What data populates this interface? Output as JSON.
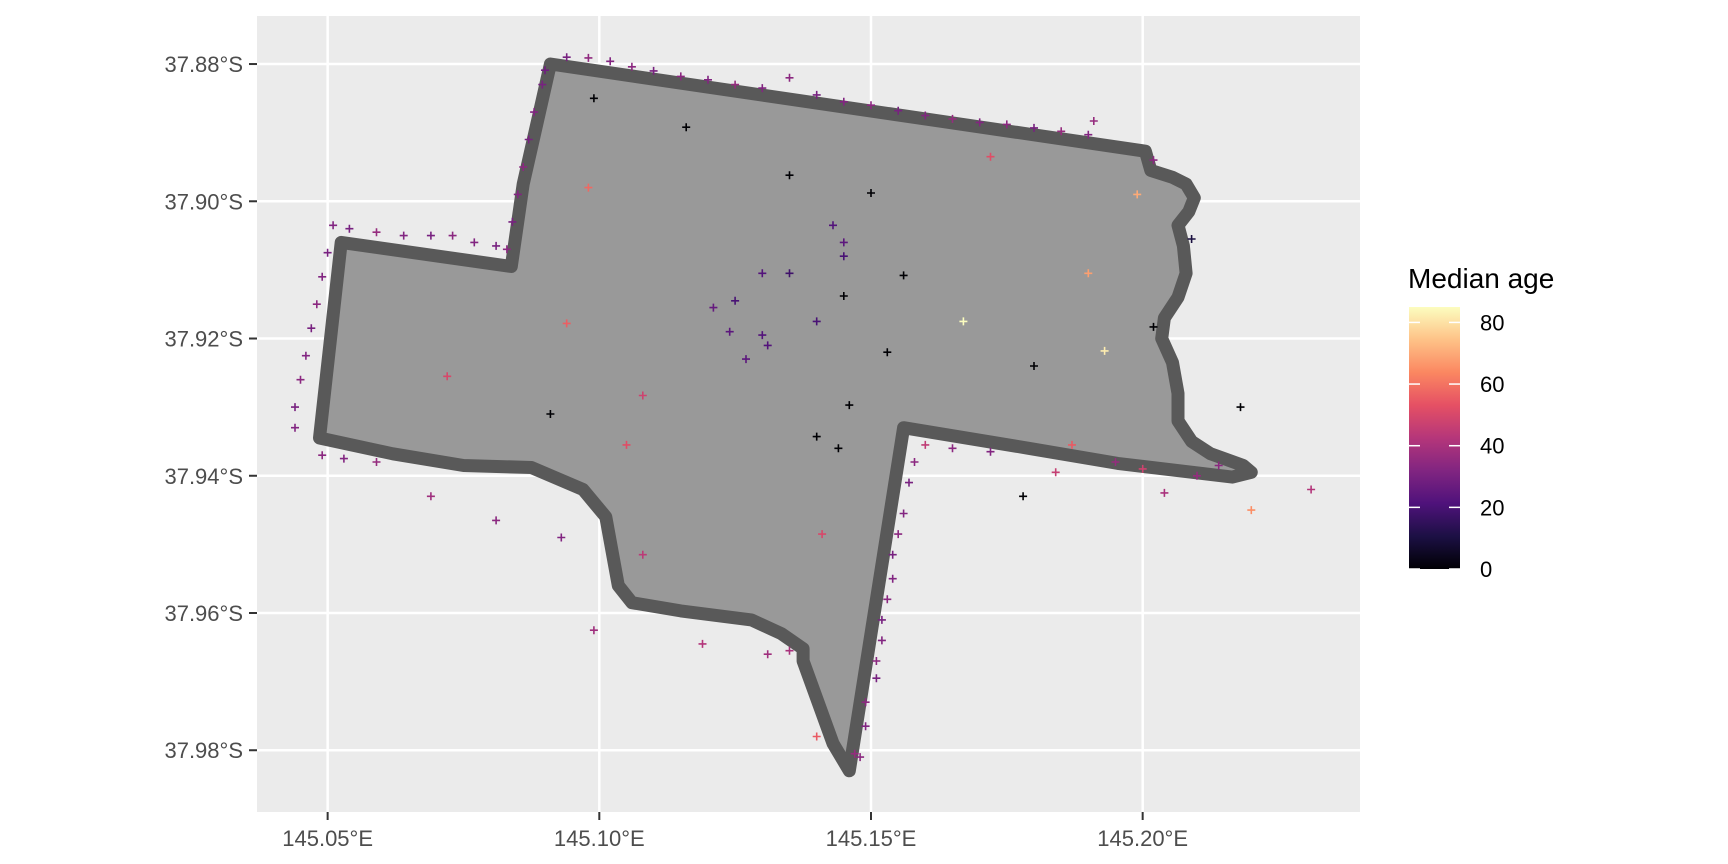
{
  "chart_data": {
    "type": "scatter",
    "xlim": [
      145.037,
      145.24
    ],
    "ylim": [
      -37.989,
      -37.873
    ],
    "x_ticks": [
      {
        "value": 145.05,
        "label": "145.05°E"
      },
      {
        "value": 145.1,
        "label": "145.10°E"
      },
      {
        "value": 145.15,
        "label": "145.15°E"
      },
      {
        "value": 145.2,
        "label": "145.20°E"
      }
    ],
    "y_ticks": [
      {
        "value": -37.88,
        "label": "37.88°S"
      },
      {
        "value": -37.9,
        "label": "37.90°S"
      },
      {
        "value": -37.92,
        "label": "37.92°S"
      },
      {
        "value": -37.94,
        "label": "37.94°S"
      },
      {
        "value": -37.96,
        "label": "37.96°S"
      },
      {
        "value": -37.98,
        "label": "37.98°S"
      }
    ],
    "grid": true,
    "legend": {
      "title": "Median age",
      "placement": "right",
      "min": 0,
      "max": 85,
      "ticks": [
        0,
        20,
        40,
        60,
        80
      ],
      "colors": [
        "#000004",
        "#1c1044",
        "#4f127b",
        "#812581",
        "#b5367a",
        "#e55064",
        "#fb8761",
        "#fec287",
        "#fcfdbf"
      ]
    },
    "boundary": [
      [
        145.091,
        -37.88
      ],
      [
        145.2005,
        -37.8927
      ],
      [
        145.2015,
        -37.8955
      ],
      [
        145.2055,
        -37.8965
      ],
      [
        145.208,
        -37.8975
      ],
      [
        145.2095,
        -37.8995
      ],
      [
        145.2085,
        -37.9015
      ],
      [
        145.2065,
        -37.9035
      ],
      [
        145.2075,
        -37.9065
      ],
      [
        145.208,
        -37.9105
      ],
      [
        145.2065,
        -37.914
      ],
      [
        145.204,
        -37.917
      ],
      [
        145.2035,
        -37.92
      ],
      [
        145.2055,
        -37.9235
      ],
      [
        145.2065,
        -37.928
      ],
      [
        145.2065,
        -37.932
      ],
      [
        145.209,
        -37.935
      ],
      [
        145.2125,
        -37.9368
      ],
      [
        145.215,
        -37.9375
      ],
      [
        145.2185,
        -37.9385
      ],
      [
        145.22,
        -37.9395
      ],
      [
        145.2165,
        -37.9402
      ],
      [
        145.1954,
        -37.9382
      ],
      [
        145.179,
        -37.936
      ],
      [
        145.156,
        -37.933
      ],
      [
        145.146,
        -37.983
      ],
      [
        145.143,
        -37.979
      ],
      [
        145.1375,
        -37.967
      ],
      [
        145.1375,
        -37.9652
      ],
      [
        145.1335,
        -37.963
      ],
      [
        145.128,
        -37.961
      ],
      [
        145.115,
        -37.9597
      ],
      [
        145.106,
        -37.9585
      ],
      [
        145.1035,
        -37.956
      ],
      [
        145.1012,
        -37.946
      ],
      [
        145.097,
        -37.942
      ],
      [
        145.0875,
        -37.9388
      ],
      [
        145.075,
        -37.9385
      ],
      [
        145.062,
        -37.9368
      ],
      [
        145.0485,
        -37.9345
      ],
      [
        145.0525,
        -37.906
      ],
      [
        145.0838,
        -37.9095
      ],
      [
        145.086,
        -37.8975
      ]
    ],
    "series": [
      {
        "x": 145.09,
        "y": -37.8809,
        "v": 28
      },
      {
        "x": 145.094,
        "y": -37.879,
        "v": 30
      },
      {
        "x": 145.098,
        "y": -37.8791,
        "v": 35
      },
      {
        "x": 145.102,
        "y": -37.8796,
        "v": 32
      },
      {
        "x": 145.106,
        "y": -37.8804,
        "v": 34
      },
      {
        "x": 145.11,
        "y": -37.881,
        "v": 30
      },
      {
        "x": 145.115,
        "y": -37.8818,
        "v": 34
      },
      {
        "x": 145.12,
        "y": -37.8823,
        "v": 32
      },
      {
        "x": 145.125,
        "y": -37.883,
        "v": 36
      },
      {
        "x": 145.13,
        "y": -37.8835,
        "v": 32
      },
      {
        "x": 145.135,
        "y": -37.882,
        "v": 34
      },
      {
        "x": 145.14,
        "y": -37.8845,
        "v": 30
      },
      {
        "x": 145.145,
        "y": -37.8855,
        "v": 32
      },
      {
        "x": 145.15,
        "y": -37.886,
        "v": 34
      },
      {
        "x": 145.155,
        "y": -37.8868,
        "v": 30
      },
      {
        "x": 145.16,
        "y": -37.8875,
        "v": 32
      },
      {
        "x": 145.165,
        "y": -37.888,
        "v": 36
      },
      {
        "x": 145.17,
        "y": -37.8885,
        "v": 32
      },
      {
        "x": 145.175,
        "y": -37.8888,
        "v": 34
      },
      {
        "x": 145.18,
        "y": -37.8893,
        "v": 30
      },
      {
        "x": 145.185,
        "y": -37.8898,
        "v": 36
      },
      {
        "x": 145.19,
        "y": -37.8903,
        "v": 32
      },
      {
        "x": 145.0895,
        "y": -37.883,
        "v": 30
      },
      {
        "x": 145.088,
        "y": -37.887,
        "v": 32
      },
      {
        "x": 145.087,
        "y": -37.891,
        "v": 30
      },
      {
        "x": 145.086,
        "y": -37.895,
        "v": 34
      },
      {
        "x": 145.085,
        "y": -37.899,
        "v": 32
      },
      {
        "x": 145.084,
        "y": -37.903,
        "v": 30
      },
      {
        "x": 145.083,
        "y": -37.907,
        "v": 34
      },
      {
        "x": 145.051,
        "y": -37.9035,
        "v": 32
      },
      {
        "x": 145.054,
        "y": -37.904,
        "v": 30
      },
      {
        "x": 145.059,
        "y": -37.9045,
        "v": 36
      },
      {
        "x": 145.064,
        "y": -37.905,
        "v": 32
      },
      {
        "x": 145.069,
        "y": -37.905,
        "v": 30
      },
      {
        "x": 145.073,
        "y": -37.905,
        "v": 34
      },
      {
        "x": 145.077,
        "y": -37.906,
        "v": 32
      },
      {
        "x": 145.081,
        "y": -37.9065,
        "v": 30
      },
      {
        "x": 145.05,
        "y": -37.9075,
        "v": 30
      },
      {
        "x": 145.049,
        "y": -37.911,
        "v": 32
      },
      {
        "x": 145.048,
        "y": -37.915,
        "v": 34
      },
      {
        "x": 145.047,
        "y": -37.9185,
        "v": 30
      },
      {
        "x": 145.046,
        "y": -37.9225,
        "v": 32
      },
      {
        "x": 145.045,
        "y": -37.926,
        "v": 34
      },
      {
        "x": 145.044,
        "y": -37.93,
        "v": 30
      },
      {
        "x": 145.044,
        "y": -37.933,
        "v": 32
      },
      {
        "x": 145.049,
        "y": -37.937,
        "v": 34
      },
      {
        "x": 145.053,
        "y": -37.9375,
        "v": 32
      },
      {
        "x": 145.059,
        "y": -37.938,
        "v": 36
      },
      {
        "x": 145.069,
        "y": -37.943,
        "v": 38
      },
      {
        "x": 145.081,
        "y": -37.9465,
        "v": 34
      },
      {
        "x": 145.093,
        "y": -37.949,
        "v": 32
      },
      {
        "x": 145.099,
        "y": -37.9625,
        "v": 38
      },
      {
        "x": 145.119,
        "y": -37.9645,
        "v": 42
      },
      {
        "x": 145.131,
        "y": -37.966,
        "v": 38
      },
      {
        "x": 145.135,
        "y": -37.9655,
        "v": 40
      },
      {
        "x": 145.14,
        "y": -37.978,
        "v": 55
      },
      {
        "x": 145.147,
        "y": -37.9805,
        "v": 36
      },
      {
        "x": 145.148,
        "y": -37.981,
        "v": 34
      },
      {
        "x": 145.149,
        "y": -37.9765,
        "v": 32
      },
      {
        "x": 145.149,
        "y": -37.973,
        "v": 34
      },
      {
        "x": 145.151,
        "y": -37.9695,
        "v": 30
      },
      {
        "x": 145.151,
        "y": -37.967,
        "v": 34
      },
      {
        "x": 145.152,
        "y": -37.964,
        "v": 32
      },
      {
        "x": 145.152,
        "y": -37.961,
        "v": 30
      },
      {
        "x": 145.153,
        "y": -37.958,
        "v": 34
      },
      {
        "x": 145.154,
        "y": -37.955,
        "v": 32
      },
      {
        "x": 145.154,
        "y": -37.9515,
        "v": 30
      },
      {
        "x": 145.155,
        "y": -37.9485,
        "v": 34
      },
      {
        "x": 145.156,
        "y": -37.9455,
        "v": 32
      },
      {
        "x": 145.157,
        "y": -37.941,
        "v": 30
      },
      {
        "x": 145.158,
        "y": -37.938,
        "v": 34
      },
      {
        "x": 145.16,
        "y": -37.9355,
        "v": 45
      },
      {
        "x": 145.165,
        "y": -37.936,
        "v": 34
      },
      {
        "x": 145.172,
        "y": -37.9365,
        "v": 32
      },
      {
        "x": 145.178,
        "y": -37.943,
        "v": 0
      },
      {
        "x": 145.184,
        "y": -37.9395,
        "v": 46
      },
      {
        "x": 145.187,
        "y": -37.9355,
        "v": 55
      },
      {
        "x": 145.195,
        "y": -37.938,
        "v": 36
      },
      {
        "x": 145.2,
        "y": -37.939,
        "v": 48
      },
      {
        "x": 145.204,
        "y": -37.9425,
        "v": 40
      },
      {
        "x": 145.21,
        "y": -37.94,
        "v": 36
      },
      {
        "x": 145.214,
        "y": -37.9385,
        "v": 34
      },
      {
        "x": 145.22,
        "y": -37.945,
        "v": 65
      },
      {
        "x": 145.231,
        "y": -37.942,
        "v": 42
      },
      {
        "x": 145.191,
        "y": -37.8883,
        "v": 36
      },
      {
        "x": 145.202,
        "y": -37.894,
        "v": 34
      },
      {
        "x": 145.209,
        "y": -37.9055,
        "v": 10
      },
      {
        "x": 145.218,
        "y": -37.93,
        "v": 0
      },
      {
        "x": 145.199,
        "y": -37.899,
        "v": 70
      },
      {
        "x": 145.172,
        "y": -37.8935,
        "v": 52
      },
      {
        "x": 145.098,
        "y": -37.898,
        "v": 58
      },
      {
        "x": 145.094,
        "y": -37.9178,
        "v": 56
      },
      {
        "x": 145.099,
        "y": -37.885,
        "v": 0
      },
      {
        "x": 145.116,
        "y": -37.8892,
        "v": 0
      },
      {
        "x": 145.135,
        "y": -37.8962,
        "v": 0
      },
      {
        "x": 145.15,
        "y": -37.8988,
        "v": 0
      },
      {
        "x": 145.156,
        "y": -37.9108,
        "v": 0
      },
      {
        "x": 145.145,
        "y": -37.9138,
        "v": 0
      },
      {
        "x": 145.153,
        "y": -37.922,
        "v": 0
      },
      {
        "x": 145.146,
        "y": -37.9297,
        "v": 0
      },
      {
        "x": 145.14,
        "y": -37.9343,
        "v": 0
      },
      {
        "x": 145.144,
        "y": -37.936,
        "v": 0
      },
      {
        "x": 145.091,
        "y": -37.931,
        "v": 0
      },
      {
        "x": 145.18,
        "y": -37.924,
        "v": 0
      },
      {
        "x": 145.202,
        "y": -37.9183,
        "v": 0
      },
      {
        "x": 145.167,
        "y": -37.9175,
        "v": 85
      },
      {
        "x": 145.193,
        "y": -37.9218,
        "v": 82
      },
      {
        "x": 145.19,
        "y": -37.9105,
        "v": 68
      },
      {
        "x": 145.072,
        "y": -37.9255,
        "v": 50
      },
      {
        "x": 145.105,
        "y": -37.9355,
        "v": 52
      },
      {
        "x": 145.108,
        "y": -37.9283,
        "v": 48
      },
      {
        "x": 145.141,
        "y": -37.9485,
        "v": 50
      },
      {
        "x": 145.108,
        "y": -37.9515,
        "v": 44
      },
      {
        "x": 145.13,
        "y": -37.9105,
        "v": 22
      },
      {
        "x": 145.135,
        "y": -37.9105,
        "v": 18
      },
      {
        "x": 145.125,
        "y": -37.9145,
        "v": 20
      },
      {
        "x": 145.13,
        "y": -37.9195,
        "v": 22
      },
      {
        "x": 145.124,
        "y": -37.919,
        "v": 24
      },
      {
        "x": 145.121,
        "y": -37.9155,
        "v": 26
      },
      {
        "x": 145.14,
        "y": -37.9175,
        "v": 20
      },
      {
        "x": 145.145,
        "y": -37.906,
        "v": 24
      },
      {
        "x": 145.143,
        "y": -37.9035,
        "v": 22
      },
      {
        "x": 145.145,
        "y": -37.908,
        "v": 20
      },
      {
        "x": 145.127,
        "y": -37.923,
        "v": 24
      },
      {
        "x": 145.131,
        "y": -37.921,
        "v": 22
      }
    ]
  }
}
